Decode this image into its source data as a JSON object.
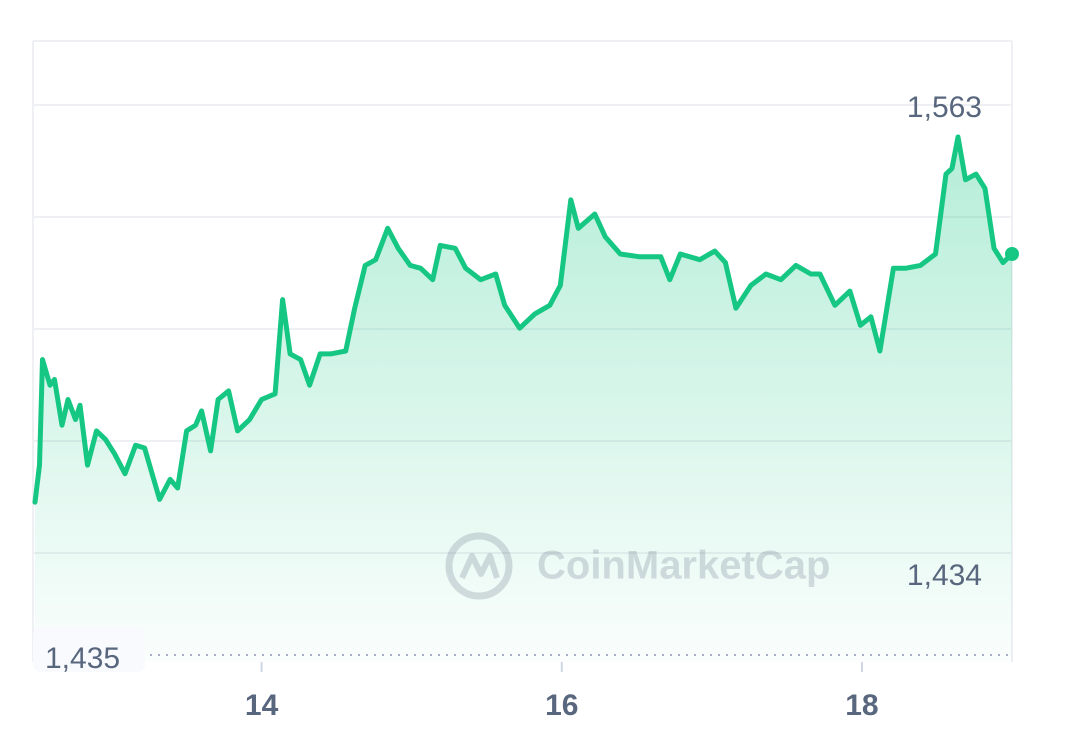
{
  "chart_data": {
    "type": "line",
    "color": "#16c784",
    "x": [
      12.49,
      12.52,
      12.54,
      12.59,
      12.62,
      12.67,
      12.71,
      12.76,
      12.79,
      12.84,
      12.9,
      12.96,
      13.02,
      13.09,
      13.16,
      13.22,
      13.32,
      13.39,
      13.44,
      13.5,
      13.56,
      13.6,
      13.66,
      13.71,
      13.78,
      13.84,
      13.92,
      14.0,
      14.09,
      14.14,
      14.19,
      14.26,
      14.32,
      14.39,
      14.46,
      14.56,
      14.62,
      14.69,
      14.76,
      14.84,
      14.91,
      14.99,
      15.06,
      15.14,
      15.19,
      15.29,
      15.36,
      15.46,
      15.56,
      15.62,
      15.72,
      15.82,
      15.92,
      15.99,
      16.06,
      16.11,
      16.22,
      16.29,
      16.39,
      16.52,
      16.66,
      16.72,
      16.79,
      16.92,
      17.02,
      17.09,
      17.16,
      17.26,
      17.36,
      17.46,
      17.56,
      17.66,
      17.72,
      17.82,
      17.92,
      17.99,
      18.06,
      18.12,
      18.21,
      18.29,
      18.39,
      18.49,
      18.56,
      18.6,
      18.64,
      18.69,
      18.76,
      18.82,
      18.88,
      18.94,
      19.0
    ],
    "values": [
      1435,
      1448,
      1485,
      1476,
      1478,
      1462,
      1471,
      1464,
      1469,
      1448,
      1460,
      1457,
      1452,
      1445,
      1455,
      1454,
      1436,
      1443,
      1440,
      1460,
      1462,
      1467,
      1453,
      1471,
      1474,
      1460,
      1464,
      1471,
      1473,
      1506,
      1487,
      1485,
      1476,
      1487,
      1487,
      1488,
      1503,
      1518,
      1520,
      1531,
      1524,
      1518,
      1517,
      1513,
      1525,
      1524,
      1517,
      1513,
      1515,
      1504,
      1496,
      1501,
      1504,
      1511,
      1541,
      1531,
      1536,
      1528,
      1522,
      1521,
      1521,
      1513,
      1522,
      1520,
      1523,
      1519,
      1503,
      1511,
      1515,
      1513,
      1518,
      1515,
      1515,
      1504,
      1509,
      1497,
      1500,
      1488,
      1517,
      1517,
      1518,
      1522,
      1550,
      1552,
      1563,
      1548,
      1550,
      1545,
      1524,
      1519,
      1522
    ],
    "xlim": [
      12.49,
      19.0
    ],
    "xticks": [
      14,
      16,
      18
    ],
    "ylim": [
      1379,
      1597
    ],
    "high_label": "1,563",
    "low_label": "1,434",
    "reference_label": "1,435",
    "watermark": "CoinMarketCap"
  }
}
